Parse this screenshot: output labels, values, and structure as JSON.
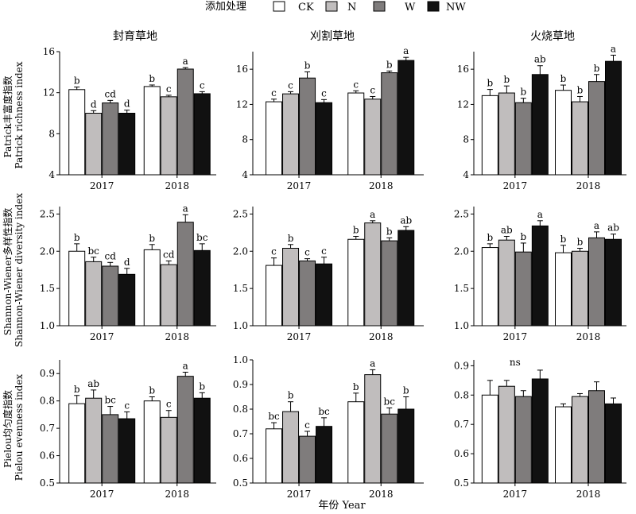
{
  "legend": {
    "title": "添加处理",
    "items": [
      {
        "label": "CK",
        "color": "#ffffff"
      },
      {
        "label": "N",
        "color": "#c0bdbd"
      },
      {
        "label": "W",
        "color": "#7f7c7c"
      },
      {
        "label": "NW",
        "color": "#111111"
      }
    ]
  },
  "xlabel": "年份 Year",
  "chart_data": [
    {
      "type": "bar",
      "title": "封育草地",
      "ylabel": "Patrick丰富度指数 Patrick richness index",
      "ylim": [
        4,
        16
      ],
      "yticks": [
        4,
        8,
        12,
        16
      ],
      "categories": [
        "2017",
        "2018"
      ],
      "series": [
        {
          "name": "CK",
          "values": [
            12.3,
            12.6
          ],
          "errors": [
            0.25,
            0.15
          ],
          "letters": [
            "b",
            "b"
          ]
        },
        {
          "name": "N",
          "values": [
            10.0,
            11.6
          ],
          "errors": [
            0.25,
            0.15
          ],
          "letters": [
            "d",
            "c"
          ]
        },
        {
          "name": "W",
          "values": [
            11.0,
            14.3
          ],
          "errors": [
            0.25,
            0.15
          ],
          "letters": [
            "cd",
            "a"
          ]
        },
        {
          "name": "NW",
          "values": [
            10.0,
            11.9
          ],
          "errors": [
            0.3,
            0.2
          ],
          "letters": [
            "d",
            "c"
          ]
        }
      ]
    },
    {
      "type": "bar",
      "title": "刈割草地",
      "ylabel": "",
      "ylim": [
        4,
        18
      ],
      "yticks": [
        4,
        8,
        12,
        16
      ],
      "categories": [
        "2017",
        "2018"
      ],
      "series": [
        {
          "name": "CK",
          "values": [
            12.3,
            13.3
          ],
          "errors": [
            0.3,
            0.25
          ],
          "letters": [
            "c",
            "c"
          ]
        },
        {
          "name": "N",
          "values": [
            13.2,
            12.6
          ],
          "errors": [
            0.25,
            0.3
          ],
          "letters": [
            "c",
            "c"
          ]
        },
        {
          "name": "W",
          "values": [
            15.0,
            15.6
          ],
          "errors": [
            0.7,
            0.2
          ],
          "letters": [
            "b",
            "b"
          ]
        },
        {
          "name": "NW",
          "values": [
            12.2,
            17.0
          ],
          "errors": [
            0.35,
            0.35
          ],
          "letters": [
            "c",
            "a"
          ]
        }
      ]
    },
    {
      "type": "bar",
      "title": "火烧草地",
      "ylabel": "",
      "ylim": [
        4,
        18
      ],
      "yticks": [
        4,
        8,
        12,
        16
      ],
      "categories": [
        "2017",
        "2018"
      ],
      "series": [
        {
          "name": "CK",
          "values": [
            13.0,
            13.6
          ],
          "errors": [
            0.7,
            0.6
          ],
          "letters": [
            "b",
            "b"
          ]
        },
        {
          "name": "N",
          "values": [
            13.3,
            12.3
          ],
          "errors": [
            0.8,
            0.6
          ],
          "letters": [
            "b",
            "b"
          ]
        },
        {
          "name": "W",
          "values": [
            12.2,
            14.6
          ],
          "errors": [
            0.5,
            0.8
          ],
          "letters": [
            "b",
            "b"
          ]
        },
        {
          "name": "NW",
          "values": [
            15.4,
            16.9
          ],
          "errors": [
            1.0,
            0.7
          ],
          "letters": [
            "ab",
            "a"
          ]
        }
      ]
    },
    {
      "type": "bar",
      "title": "",
      "ylabel": "Shannon-Wiener多样性指数 Shannon-Wiener diversity index",
      "ylim": [
        1.0,
        2.6
      ],
      "yticks": [
        1.0,
        1.5,
        2.0,
        2.5
      ],
      "categories": [
        "2017",
        "2018"
      ],
      "series": [
        {
          "name": "CK",
          "values": [
            2.0,
            2.02
          ],
          "errors": [
            0.1,
            0.07
          ],
          "letters": [
            "b",
            "b"
          ]
        },
        {
          "name": "N",
          "values": [
            1.86,
            1.82
          ],
          "errors": [
            0.06,
            0.05
          ],
          "letters": [
            "bc",
            "cd"
          ]
        },
        {
          "name": "W",
          "values": [
            1.8,
            2.39
          ],
          "errors": [
            0.05,
            0.1
          ],
          "letters": [
            "cd",
            "a"
          ]
        },
        {
          "name": "NW",
          "values": [
            1.69,
            2.01
          ],
          "errors": [
            0.08,
            0.09
          ],
          "letters": [
            "d",
            "bc"
          ]
        }
      ]
    },
    {
      "type": "bar",
      "title": "",
      "ylabel": "",
      "ylim": [
        1.0,
        2.6
      ],
      "yticks": [
        1.0,
        1.5,
        2.0,
        2.5
      ],
      "categories": [
        "2017",
        "2018"
      ],
      "series": [
        {
          "name": "CK",
          "values": [
            1.81,
            2.16
          ],
          "errors": [
            0.1,
            0.04
          ],
          "letters": [
            "c",
            "b"
          ]
        },
        {
          "name": "N",
          "values": [
            2.04,
            2.38
          ],
          "errors": [
            0.05,
            0.03
          ],
          "letters": [
            "b",
            "a"
          ]
        },
        {
          "name": "W",
          "values": [
            1.87,
            2.14
          ],
          "errors": [
            0.03,
            0.04
          ],
          "letters": [
            "c",
            "b"
          ]
        },
        {
          "name": "NW",
          "values": [
            1.83,
            2.28
          ],
          "errors": [
            0.09,
            0.05
          ],
          "letters": [
            "c",
            "ab"
          ]
        }
      ]
    },
    {
      "type": "bar",
      "title": "",
      "ylabel": "",
      "ylim": [
        1.0,
        2.6
      ],
      "yticks": [
        1.0,
        1.5,
        2.0,
        2.5
      ],
      "categories": [
        "2017",
        "2018"
      ],
      "series": [
        {
          "name": "CK",
          "values": [
            2.05,
            1.98
          ],
          "errors": [
            0.05,
            0.1
          ],
          "letters": [
            "b",
            "b"
          ]
        },
        {
          "name": "N",
          "values": [
            2.15,
            2.0
          ],
          "errors": [
            0.05,
            0.04
          ],
          "letters": [
            "ab",
            "b"
          ]
        },
        {
          "name": "W",
          "values": [
            1.99,
            2.18
          ],
          "errors": [
            0.12,
            0.08
          ],
          "letters": [
            "b",
            "a"
          ]
        },
        {
          "name": "NW",
          "values": [
            2.34,
            2.16
          ],
          "errors": [
            0.07,
            0.07
          ],
          "letters": [
            "a",
            "ab"
          ]
        }
      ]
    },
    {
      "type": "bar",
      "title": "",
      "ylabel": "Pielou均匀度指数 Pielou evenness index",
      "ylim": [
        0.5,
        0.95
      ],
      "yticks": [
        0.5,
        0.6,
        0.7,
        0.8,
        0.9
      ],
      "categories": [
        "2017",
        "2018"
      ],
      "series": [
        {
          "name": "CK",
          "values": [
            0.79,
            0.8
          ],
          "errors": [
            0.03,
            0.015
          ],
          "letters": [
            "b",
            "b"
          ]
        },
        {
          "name": "N",
          "values": [
            0.81,
            0.74
          ],
          "errors": [
            0.03,
            0.025
          ],
          "letters": [
            "ab",
            "c"
          ]
        },
        {
          "name": "W",
          "values": [
            0.75,
            0.89
          ],
          "errors": [
            0.03,
            0.015
          ],
          "letters": [
            "bc",
            "a"
          ]
        },
        {
          "name": "NW",
          "values": [
            0.735,
            0.81
          ],
          "errors": [
            0.025,
            0.02
          ],
          "letters": [
            "c",
            "b"
          ]
        }
      ]
    },
    {
      "type": "bar",
      "title": "",
      "ylabel": "",
      "ylim": [
        0.5,
        1.0
      ],
      "yticks": [
        0.5,
        0.6,
        0.7,
        0.8,
        0.9,
        1.0
      ],
      "categories": [
        "2017",
        "2018"
      ],
      "series": [
        {
          "name": "CK",
          "values": [
            0.72,
            0.83
          ],
          "errors": [
            0.025,
            0.035
          ],
          "letters": [
            "bc",
            "b"
          ]
        },
        {
          "name": "N",
          "values": [
            0.79,
            0.94
          ],
          "errors": [
            0.04,
            0.02
          ],
          "letters": [
            "b",
            "a"
          ]
        },
        {
          "name": "W",
          "values": [
            0.69,
            0.78
          ],
          "errors": [
            0.02,
            0.025
          ],
          "letters": [
            "c",
            "bc"
          ]
        },
        {
          "name": "NW",
          "values": [
            0.73,
            0.8
          ],
          "errors": [
            0.035,
            0.05
          ],
          "letters": [
            "bc",
            "b"
          ]
        }
      ]
    },
    {
      "type": "bar",
      "title": "",
      "ylabel": "",
      "ylim": [
        0.5,
        0.92
      ],
      "yticks": [
        0.5,
        0.6,
        0.7,
        0.8,
        0.9
      ],
      "categories": [
        "2017",
        "2018"
      ],
      "group_letters": [
        "ns",
        ""
      ],
      "series": [
        {
          "name": "CK",
          "values": [
            0.8,
            0.76
          ],
          "errors": [
            0.05,
            0.01
          ],
          "letters": [
            "",
            ""
          ]
        },
        {
          "name": "N",
          "values": [
            0.83,
            0.795
          ],
          "errors": [
            0.02,
            0.01
          ],
          "letters": [
            "",
            ""
          ]
        },
        {
          "name": "W",
          "values": [
            0.795,
            0.815
          ],
          "errors": [
            0.02,
            0.03
          ],
          "letters": [
            "",
            ""
          ]
        },
        {
          "name": "NW",
          "values": [
            0.855,
            0.77
          ],
          "errors": [
            0.03,
            0.02
          ],
          "letters": [
            "",
            ""
          ]
        }
      ]
    }
  ]
}
